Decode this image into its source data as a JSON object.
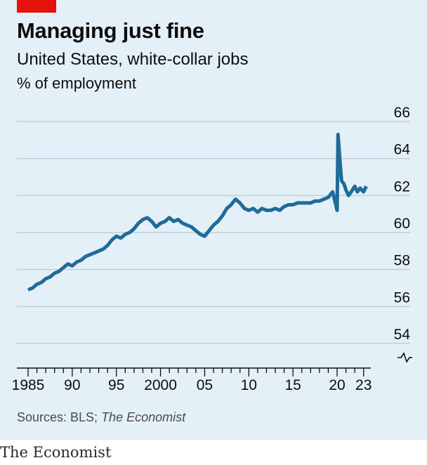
{
  "header": {
    "title": "Managing just fine",
    "subtitle": "United States, white-collar jobs",
    "unit": "% of employment"
  },
  "footer": {
    "source_prefix": "Sources: BLS; ",
    "source_pub": "The Economist",
    "brand": "The Economist"
  },
  "colors": {
    "background": "#e4f0f7",
    "line": "#1f6b99",
    "grid": "#b7c7d3",
    "accent": "#e3120b"
  },
  "chart_data": {
    "type": "line",
    "title": "Managing just fine",
    "subtitle": "United States, white-collar jobs",
    "ylabel": "% of employment",
    "xlim": [
      1985,
      2023.5
    ],
    "ylim": [
      54,
      66
    ],
    "y_ticks": [
      54,
      56,
      58,
      60,
      62,
      64,
      66
    ],
    "y_tick_labels": [
      "54",
      "56",
      "58",
      "60",
      "62",
      "64",
      "66"
    ],
    "x_ticks": [
      1985,
      1990,
      1995,
      2000,
      2005,
      2010,
      2015,
      2020,
      2023
    ],
    "x_tick_labels": [
      "1985",
      "90",
      "95",
      "2000",
      "05",
      "10",
      "15",
      "20",
      "23"
    ],
    "axis_break": true,
    "grid": true,
    "series": [
      {
        "x": [
          1985.0,
          1985.5,
          1986.0,
          1986.5,
          1987.0,
          1987.5,
          1988.0,
          1988.5,
          1989.0,
          1989.5,
          1990.0,
          1990.5,
          1991.0,
          1991.5,
          1992.0,
          1992.5,
          1993.0,
          1993.5,
          1994.0,
          1994.5,
          1995.0,
          1995.5,
          1996.0,
          1996.5,
          1997.0,
          1997.5,
          1998.0,
          1998.5,
          1999.0,
          1999.5,
          2000.0,
          2000.5,
          2001.0,
          2001.5,
          2002.0,
          2002.5,
          2003.0,
          2003.5,
          2004.0,
          2004.5,
          2005.0,
          2005.5,
          2006.0,
          2006.5,
          2007.0,
          2007.5,
          2008.0,
          2008.5,
          2009.0,
          2009.5,
          2010.0,
          2010.5,
          2011.0,
          2011.5,
          2012.0,
          2012.5,
          2013.0,
          2013.5,
          2014.0,
          2014.5,
          2015.0,
          2015.5,
          2016.0,
          2016.5,
          2017.0,
          2017.5,
          2018.0,
          2018.5,
          2019.0,
          2019.5,
          2020.0,
          2020.1,
          2020.3,
          2020.5,
          2020.8,
          2021.0,
          2021.3,
          2021.6,
          2022.0,
          2022.3,
          2022.6,
          2023.0,
          2023.3
        ],
        "values": [
          56.9,
          57.0,
          57.2,
          57.3,
          57.5,
          57.6,
          57.8,
          57.9,
          58.1,
          58.3,
          58.2,
          58.4,
          58.5,
          58.7,
          58.8,
          58.9,
          59.0,
          59.1,
          59.3,
          59.6,
          59.8,
          59.7,
          59.9,
          60.0,
          60.2,
          60.5,
          60.7,
          60.8,
          60.6,
          60.3,
          60.5,
          60.6,
          60.8,
          60.6,
          60.7,
          60.5,
          60.4,
          60.3,
          60.1,
          59.9,
          59.8,
          60.1,
          60.4,
          60.6,
          60.9,
          61.3,
          61.5,
          61.8,
          61.6,
          61.3,
          61.2,
          61.3,
          61.1,
          61.3,
          61.2,
          61.2,
          61.3,
          61.2,
          61.4,
          61.5,
          61.5,
          61.6,
          61.6,
          61.6,
          61.6,
          61.7,
          61.7,
          61.8,
          61.9,
          62.2,
          61.2,
          65.3,
          64.0,
          62.8,
          62.6,
          62.3,
          62.0,
          62.2,
          62.5,
          62.2,
          62.4,
          62.2,
          62.5
        ]
      }
    ]
  }
}
